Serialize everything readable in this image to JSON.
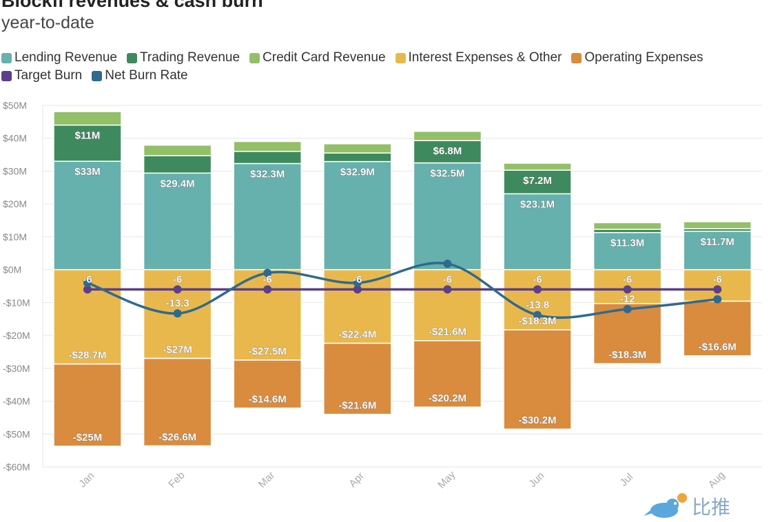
{
  "header": {
    "title": "Blockfi revenues & cash burn",
    "subtitle": "year-to-date"
  },
  "watermark": {
    "text": "比推"
  },
  "colors": {
    "target_burn": "#5b3f8c",
    "net_burn_rate": "#2f6a8e",
    "lending": "#66b0ad",
    "trading": "#3e8a5e",
    "credit_card": "#92bf67",
    "interest": "#e9b84c",
    "operating": "#d98b3e",
    "grid": "#e6e6e6",
    "axis_text": "#888888"
  },
  "chart_data": {
    "type": "bar",
    "stacked": true,
    "categories": [
      "Jan",
      "Feb",
      "Mar",
      "Apr",
      "May",
      "Jun",
      "Jul",
      "Aug"
    ],
    "ylim": [
      -60,
      50
    ],
    "yticks": [
      50,
      40,
      30,
      20,
      10,
      0,
      -10,
      -20,
      -30,
      -40,
      -50,
      -60
    ],
    "ytick_labels": [
      "$50M",
      "$40M",
      "$30M",
      "$20M",
      "$10M",
      "$0M",
      "-$10M",
      "-$20M",
      "-$30M",
      "-$40M",
      "-$50M",
      "-$60M"
    ],
    "grid": true,
    "legend_position": "top-left",
    "series": [
      {
        "name": "Lending Revenue",
        "kind": "bar",
        "color_key": "lending",
        "values": [
          33,
          29.4,
          32.3,
          32.9,
          32.5,
          23.1,
          11.3,
          11.7
        ],
        "labels": [
          "$33M",
          "$29.4M",
          "$32.3M",
          "$32.9M",
          "$32.5M",
          "$23.1M",
          "$11.3M",
          "$11.7M"
        ]
      },
      {
        "name": "Trading Revenue",
        "kind": "bar",
        "color_key": "trading",
        "values": [
          11,
          5.3,
          3.7,
          2.6,
          6.8,
          7.2,
          1,
          0.8
        ],
        "labels": [
          "$11M",
          "",
          "",
          "",
          "$6.8M",
          "$7.2M",
          "",
          ""
        ]
      },
      {
        "name": "Credit Card Revenue",
        "kind": "bar",
        "color_key": "credit_card",
        "values": [
          4.1,
          3.2,
          3.0,
          2.8,
          2.8,
          2.1,
          2.0,
          2.1
        ],
        "labels": [
          "",
          "",
          "",
          "",
          "",
          "",
          "",
          ""
        ]
      },
      {
        "name": "Interest Expenses & Other",
        "kind": "bar",
        "color_key": "interest",
        "values": [
          -28.7,
          -27,
          -27.5,
          -22.4,
          -21.6,
          -18.3,
          -10.3,
          -9.6
        ],
        "labels": [
          "-$28.7M",
          "-$27M",
          "-$27.5M",
          "-$22.4M",
          "-$21.6M",
          "-$18.3M",
          "",
          ""
        ]
      },
      {
        "name": "Operating Expenses",
        "kind": "bar",
        "color_key": "operating",
        "values": [
          -25,
          -26.6,
          -14.6,
          -21.6,
          -20.2,
          -30.2,
          -18.3,
          -16.6
        ],
        "labels": [
          "-$25M",
          "-$26.6M",
          "-$14.6M",
          "-$21.6M",
          "-$20.2M",
          "-$30.2M",
          "-$18.3M",
          "-$16.6M"
        ]
      },
      {
        "name": "Target Burn",
        "kind": "line",
        "color_key": "target_burn",
        "values": [
          -6,
          -6,
          -6,
          -6,
          -6,
          -6,
          -6,
          -6
        ],
        "labels": [
          "-6",
          "-6",
          "-6",
          "-6",
          "-6",
          "-6",
          "-6",
          "-6"
        ]
      },
      {
        "name": "Net Burn Rate",
        "kind": "line",
        "color_key": "net_burn_rate",
        "smooth": true,
        "values": [
          -4,
          -13.3,
          -1,
          -4,
          1.8,
          -13.8,
          -12,
          -9
        ],
        "labels": [
          "",
          "-13.3",
          "",
          "",
          "",
          "-13.8",
          "-12",
          ""
        ]
      }
    ]
  }
}
